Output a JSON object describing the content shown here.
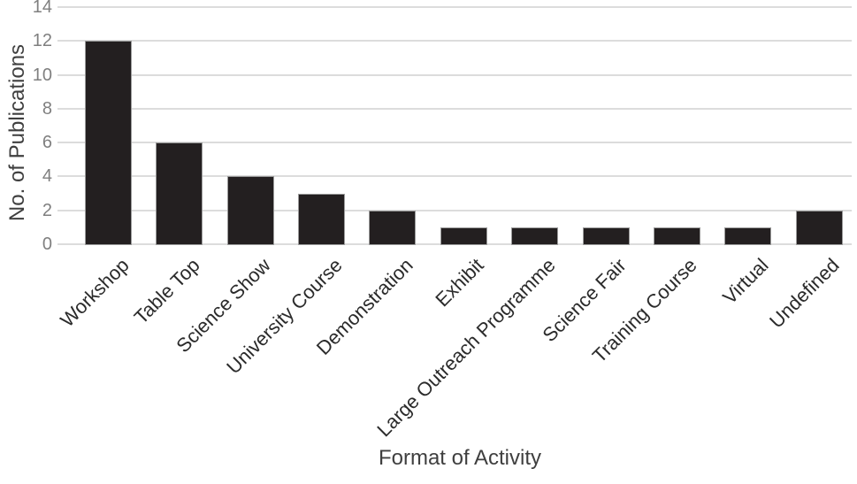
{
  "chart_data": {
    "type": "bar",
    "title": "",
    "categories": [
      "Workshop",
      "Table Top",
      "Science Show",
      "University Course",
      "Demonstration",
      "Exhibit",
      "Large Outreach Programme",
      "Science Fair",
      "Training Course",
      "Virtual",
      "Undefined"
    ],
    "values": [
      12,
      6,
      4,
      3,
      2,
      1,
      1,
      1,
      1,
      1,
      2
    ],
    "xlabel": "Format of Activity",
    "ylabel": "No. of Publications",
    "ylim": [
      0,
      14
    ],
    "ytick_step": 2,
    "yticks": [
      0,
      2,
      4,
      6,
      8,
      10,
      12,
      14
    ],
    "grid": "horizontal-only",
    "legend": "none",
    "category_label_rotation_deg": 45,
    "colors": {
      "bar_fill": "#231f20",
      "bar_edge": "#9b9b9b",
      "gridline": "#dcdcdc",
      "y_tick_label": "#7f7f7f",
      "category_label": "#2b2b2b",
      "axis_title": "#3f3f3f",
      "background": "#ffffff"
    }
  }
}
